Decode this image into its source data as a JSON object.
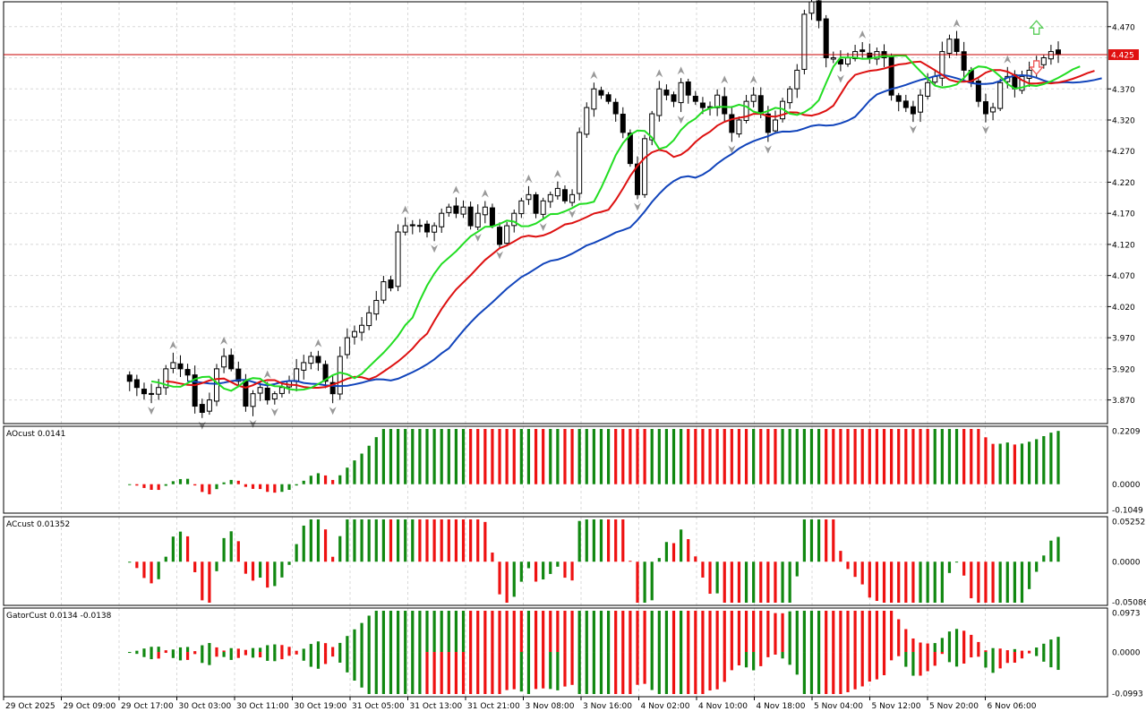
{
  "colors": {
    "background": "#ffffff",
    "grid": "#d8d8d8",
    "candle_outline": "#000000",
    "bull_fill": "#ffffff",
    "bear_fill": "#000000",
    "fast_line": "#22dd22",
    "mid_line": "#dd1111",
    "slow_line": "#1144bb",
    "hline": "#c80000",
    "hist_up": "#118811",
    "hist_down": "#ee1111",
    "fractal": "#999999",
    "arrow_up": "#55cc55",
    "arrow_down": "#ee5555",
    "price_tag_bg": "#e01010",
    "price_tag_text": "#ffffff"
  },
  "price_panel": {
    "horizontal_line_price": "4.425",
    "price_ticks": [
      "4.470",
      "4.370",
      "4.320",
      "4.270",
      "4.220",
      "4.170",
      "4.120",
      "4.070",
      "4.020",
      "3.970",
      "3.920",
      "3.870"
    ]
  },
  "panels": [
    {
      "label": "AOcust 0.0141",
      "ticks": [
        "0.2209",
        "0.0000",
        "-0.1049"
      ]
    },
    {
      "label": "ACcust 0.01352",
      "ticks": [
        "0.05252",
        "0.0000",
        "-0.05086"
      ]
    },
    {
      "label": "GatorCust 0.0134 -0.0138",
      "ticks": [
        "0.0973",
        "0.0000",
        "-0.0993"
      ]
    }
  ],
  "time_axis": [
    "29 Oct 2025",
    "29 Oct 09:00",
    "29 Oct 17:00",
    "30 Oct 03:00",
    "30 Oct 11:00",
    "30 Oct 19:00",
    "31 Oct 05:00",
    "31 Oct 13:00",
    "31 Oct 21:00",
    "3 Nov 08:00",
    "3 Nov 16:00",
    "4 Nov 02:00",
    "4 Nov 10:00",
    "4 Nov 18:00",
    "5 Nov 04:00",
    "5 Nov 12:00",
    "5 Nov 20:00",
    "6 Nov 06:00"
  ],
  "chart_data": {
    "type": "candlestick",
    "closes": [
      3.9,
      3.89,
      3.88,
      3.88,
      3.89,
      3.92,
      3.93,
      3.92,
      3.91,
      3.86,
      3.85,
      3.87,
      3.92,
      3.94,
      3.92,
      3.9,
      3.86,
      3.88,
      3.89,
      3.87,
      3.88,
      3.89,
      3.9,
      3.92,
      3.93,
      3.94,
      3.93,
      3.9,
      3.88,
      3.94,
      3.97,
      3.98,
      3.99,
      4.01,
      4.03,
      4.06,
      4.05,
      4.14,
      4.15,
      4.15,
      4.15,
      4.14,
      4.15,
      4.17,
      4.18,
      4.17,
      4.18,
      4.15,
      4.17,
      4.18,
      4.15,
      4.12,
      4.15,
      4.17,
      4.19,
      4.2,
      4.17,
      4.19,
      4.2,
      4.21,
      4.19,
      4.2,
      4.3,
      4.34,
      4.37,
      4.36,
      4.35,
      4.33,
      4.3,
      4.25,
      4.2,
      4.29,
      4.33,
      4.37,
      4.36,
      4.35,
      4.38,
      4.36,
      4.35,
      4.34,
      4.34,
      4.36,
      4.33,
      4.3,
      4.32,
      4.35,
      4.36,
      4.33,
      4.3,
      4.32,
      4.35,
      4.37,
      4.4,
      4.49,
      4.51,
      4.48,
      4.42,
      4.42,
      4.41,
      4.42,
      4.43,
      4.43,
      4.42,
      4.43,
      4.42,
      4.36,
      4.35,
      4.34,
      4.33,
      4.36,
      4.38,
      4.39,
      4.43,
      4.45,
      4.43,
      4.4,
      4.38,
      4.35,
      4.33,
      4.34,
      4.38,
      4.39,
      4.37,
      4.39,
      4.4,
      4.41,
      4.42,
      4.43,
      4.425
    ],
    "price_range": [
      3.832,
      4.51
    ],
    "series": [
      {
        "name": "AOcust",
        "range": [
          -0.1049,
          0.2209
        ]
      },
      {
        "name": "ACcust",
        "range": [
          -0.05086,
          0.05252
        ]
      },
      {
        "name": "GatorCust",
        "range": [
          -0.0993,
          0.0973
        ]
      }
    ]
  }
}
